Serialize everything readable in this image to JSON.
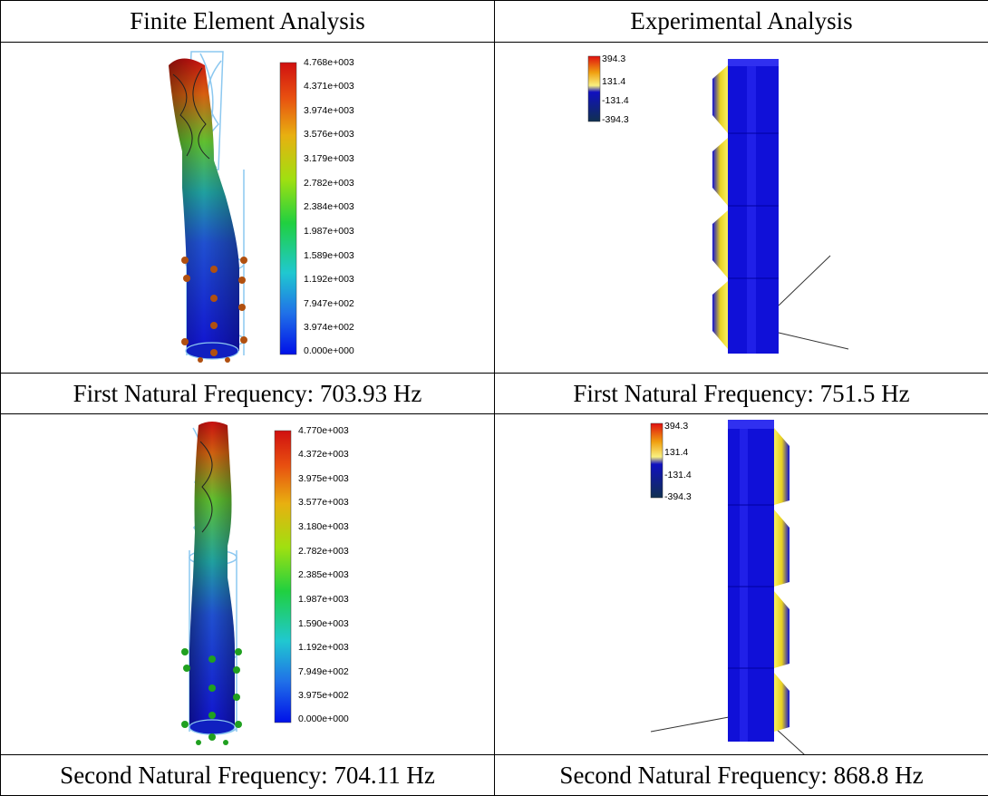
{
  "table": {
    "headers": [
      "Finite Element Analysis",
      "Experimental Analysis"
    ],
    "rows": [
      {
        "fea_caption": "First Natural Frequency: 703.93 Hz",
        "exp_caption": "First Natural Frequency: 751.5 Hz",
        "fea_scale": [
          "4.768e+003",
          "4.371e+003",
          "3.974e+003",
          "3.576e+003",
          "3.179e+003",
          "2.782e+003",
          "2.384e+003",
          "1.987e+003",
          "1.589e+003",
          "1.192e+003",
          "7.947e+002",
          "3.974e+002",
          "0.000e+000"
        ],
        "exp_scale": [
          "394.3",
          "131.4",
          "-131.4",
          "-394.3"
        ]
      },
      {
        "fea_caption": "Second Natural Frequency: 704.11 Hz",
        "exp_caption": "Second Natural Frequency: 868.8 Hz",
        "fea_scale": [
          "4.770e+003",
          "4.372e+003",
          "3.975e+003",
          "3.577e+003",
          "3.180e+003",
          "2.782e+003",
          "2.385e+003",
          "1.987e+003",
          "1.590e+003",
          "1.192e+003",
          "7.949e+002",
          "3.975e+002",
          "0.000e+000"
        ],
        "exp_scale": [
          "394.3",
          "131.4",
          "-131.4",
          "-394.3"
        ]
      }
    ]
  },
  "colors": {
    "fea_gradient": [
      "#d01010",
      "#e85a10",
      "#e8b010",
      "#c8e010",
      "#60d020",
      "#20d060",
      "#20c8c0",
      "#2080e8",
      "#1020e8"
    ],
    "exp_gradient": [
      "#e01010",
      "#f0a010",
      "#f8f060",
      "#1010c8",
      "#103050"
    ],
    "restraint_first": "#b05010",
    "restraint_second": "#20a020"
  },
  "icons": {
    "fea_model": "mode-shape-drill-icon",
    "exp_model": "mode-shape-bar-icon"
  }
}
